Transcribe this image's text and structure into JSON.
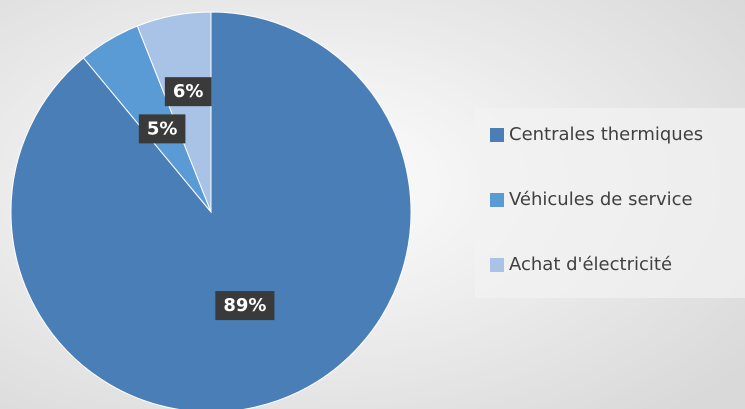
{
  "chart_data": {
    "type": "pie",
    "categories": [
      "Centrales thermiques",
      "Véhicules de service",
      "Achat d'électricité"
    ],
    "values": [
      89,
      5,
      6
    ],
    "value_labels": [
      "89%",
      "5%",
      "6%"
    ],
    "colors": [
      "#4a7eb6",
      "#5b9bd5",
      "#a8c3e6"
    ],
    "legend": "right"
  }
}
